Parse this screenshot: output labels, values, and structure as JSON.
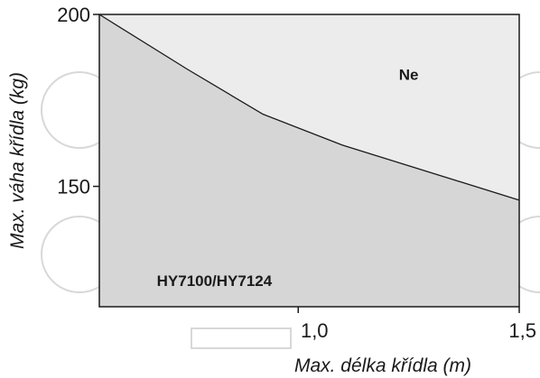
{
  "chart_data": {
    "type": "area",
    "title": "",
    "xlabel": "Max. délka křídla (m)",
    "ylabel": "Max. váha křídla (kg)",
    "xlim": [
      0.55,
      1.5
    ],
    "ylim": [
      115,
      200
    ],
    "x_ticks": [
      {
        "value": 1.0,
        "label": "1,0"
      },
      {
        "value": 1.5,
        "label": "1,5"
      }
    ],
    "y_ticks": [
      {
        "value": 200,
        "label": "200"
      },
      {
        "value": 150,
        "label": "150"
      }
    ],
    "series": [
      {
        "name": "",
        "x": [
          0.55,
          0.75,
          0.92,
          1.1,
          1.3,
          1.5
        ],
        "y": [
          200,
          184,
          171,
          162,
          154,
          146
        ]
      }
    ],
    "regions": [
      {
        "label": "HY7100/HY7124",
        "position": "below-curve",
        "color": "#d6d6d6"
      },
      {
        "label": "Ne",
        "position": "above-curve",
        "color": "#ececec"
      }
    ],
    "region_label_values": {
      "Ne": {
        "x": 1.25,
        "y": 181
      },
      "HY7100/HY7124": {
        "x": 0.68,
        "y": 121
      }
    },
    "grid": false,
    "legend": "none",
    "colors": {
      "below": "#d6d6d6",
      "above": "#ececec",
      "line": "#1a1a1a",
      "frame": "#1a1a1a"
    }
  }
}
